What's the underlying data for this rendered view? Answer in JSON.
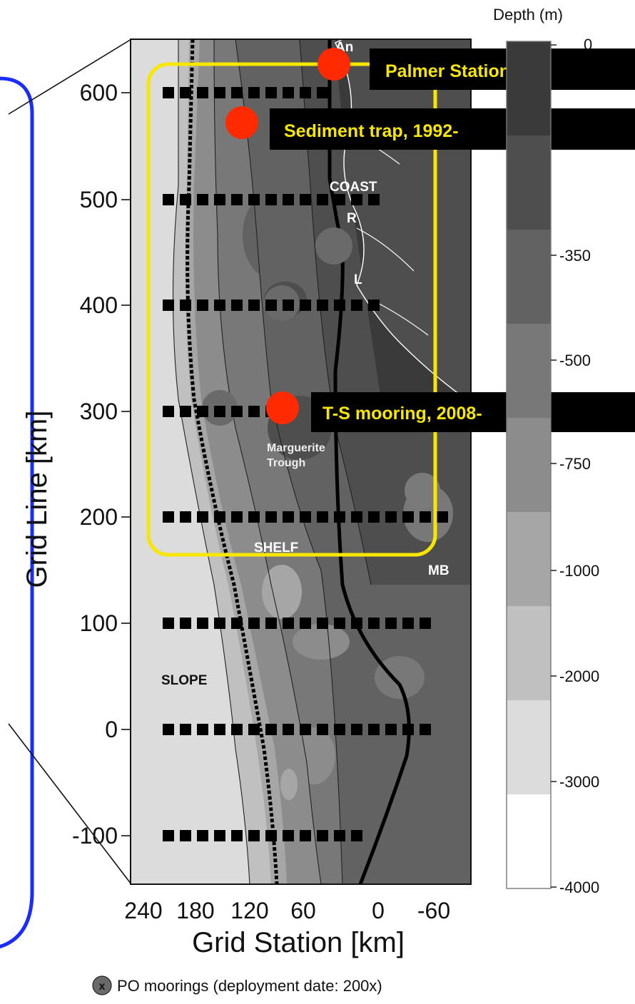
{
  "axes": {
    "y_title": "Grid Line [km]",
    "x_title": "Grid Station [km]",
    "y_ticks": [
      "600",
      "500",
      "400",
      "300",
      "200",
      "100",
      "0",
      "-100"
    ],
    "x_ticks": [
      "240",
      "180",
      "120",
      "60",
      "0",
      "-60"
    ]
  },
  "colorbar": {
    "title": "Depth (m)",
    "tick_labels": [
      "0",
      "-350",
      "-500",
      "-750",
      "-1000",
      "-2000",
      "-3000",
      "-4000"
    ],
    "band_colors": [
      "#3a3a3a",
      "#4e4e4e",
      "#626262",
      "#787878",
      "#8c8c8c",
      "#a6a6a6",
      "#c0c0c0",
      "#dcdcdc",
      "#ffffff"
    ]
  },
  "map_labels": {
    "coast": "COAST",
    "shelf": "SHELF",
    "slope": "SLOPE",
    "trough_line1": "Marguerite",
    "trough_line2": "Trough",
    "r": "R",
    "l": "L",
    "mb": "MB",
    "an": "An"
  },
  "annotations": {
    "palmer": "Palmer Station",
    "sediment": "Sediment trap, 1992-",
    "ts_mooring": "T-S mooring, 2008-"
  },
  "legend": {
    "marker_letter": "x",
    "text": "PO moorings (deployment date: 200x)"
  },
  "colors": {
    "highlight_box": "#f7e600",
    "inset_frame": "#1a2cff",
    "site_marker": "#ff2a00"
  }
}
